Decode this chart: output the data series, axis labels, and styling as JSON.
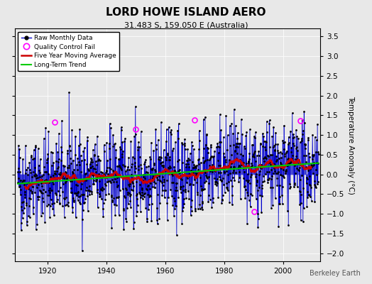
{
  "title": "LORD HOWE ISLAND AERO",
  "subtitle": "31.483 S, 159.050 E (Australia)",
  "ylabel": "Temperature Anomaly (°C)",
  "credit": "Berkeley Earth",
  "year_start": 1910,
  "year_end": 2012,
  "ylim": [
    -2.2,
    3.7
  ],
  "yticks": [
    -2,
    -1.5,
    -1,
    -0.5,
    0,
    0.5,
    1,
    1.5,
    2,
    2.5,
    3,
    3.5
  ],
  "xticks": [
    1920,
    1940,
    1960,
    1980,
    2000
  ],
  "bg_color": "#e8e8e8",
  "plot_bg_color": "#e8e8e8",
  "line_color": "#0000cc",
  "trend_color": "#00cc00",
  "moving_avg_color": "#cc0000",
  "marker_color": "#000000",
  "qc_fail_color": "#ff00ff",
  "random_seed": 42,
  "trend_slope": 0.004,
  "noise_scale": 0.55,
  "qc_indices": [
    150,
    480,
    720,
    960,
    1150
  ],
  "qc_offsets": [
    1.3,
    1.0,
    1.2,
    -1.5,
    1.8
  ]
}
